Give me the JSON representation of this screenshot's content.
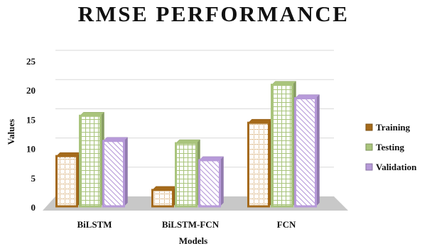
{
  "chart_data": {
    "type": "bar",
    "title": "RMSE PERFORMANCE",
    "xlabel": "Models",
    "ylabel": "Values",
    "categories": [
      "BiLSTM",
      "BiLSTM-FCN",
      "FCN"
    ],
    "ylim": [
      0,
      25
    ],
    "yticks": [
      "0",
      "5",
      "10",
      "15",
      "20",
      "25"
    ],
    "grid": true,
    "legend_position": "right",
    "series": [
      {
        "name": "Training",
        "values": [
          8.6,
          2.8,
          14.3
        ],
        "color": "#a56a1a",
        "fill": "#ffffff",
        "pattern": "dotted-grid"
      },
      {
        "name": "Testing",
        "values": [
          15.5,
          10.8,
          20.8
        ],
        "color": "#a9c47c",
        "fill": "#ffffff",
        "pattern": "grid"
      },
      {
        "name": "Validation",
        "values": [
          11.2,
          7.9,
          18.5
        ],
        "color": "#b79ad9",
        "fill": "#ffffff",
        "pattern": "diagonal"
      }
    ]
  }
}
